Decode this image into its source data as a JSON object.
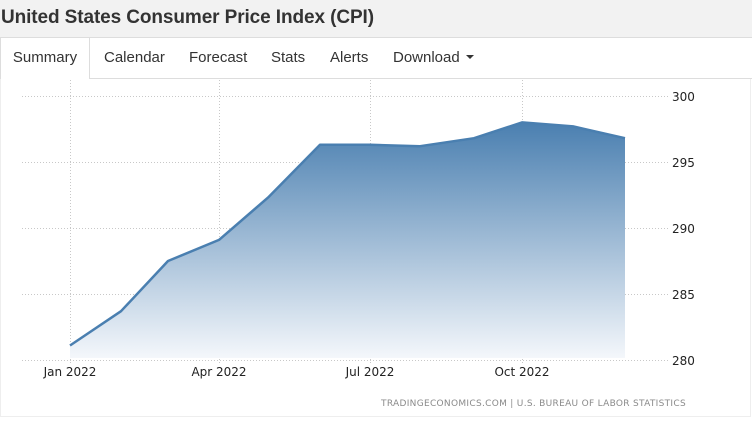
{
  "header": {
    "title": "United States Consumer Price Index (CPI)"
  },
  "tabs": [
    {
      "label": "Summary",
      "active": true
    },
    {
      "label": "Calendar",
      "active": false
    },
    {
      "label": "Forecast",
      "active": false
    },
    {
      "label": "Stats",
      "active": false
    },
    {
      "label": "Alerts",
      "active": false
    },
    {
      "label": "Download",
      "active": false,
      "dropdown": true
    }
  ],
  "colors": {
    "line": "#4a7fb0",
    "fill_top": "#4a7fb0",
    "fill_bottom": "#f4f7fb",
    "grid": "#c8c8c8"
  },
  "source": "TRADINGECONOMICS.COM  |  U.S. BUREAU OF LABOR STATISTICS",
  "chart_data": {
    "type": "area",
    "title": "United States Consumer Price Index (CPI)",
    "xlabel": "",
    "ylabel": "",
    "x": [
      "Jan 2022",
      "Feb 2022",
      "Mar 2022",
      "Apr 2022",
      "May 2022",
      "Jun 2022",
      "Jul 2022",
      "Aug 2022",
      "Sep 2022",
      "Oct 2022",
      "Nov 2022",
      "Dec 2022"
    ],
    "values": [
      281.1,
      283.7,
      287.5,
      289.1,
      292.3,
      296.3,
      296.3,
      296.2,
      296.8,
      298.0,
      297.7,
      296.8
    ],
    "x_tick_labels": [
      "Jan 2022",
      "Apr 2022",
      "Jul 2022",
      "Oct 2022"
    ],
    "y_tick_labels": [
      "280",
      "285",
      "290",
      "295",
      "300"
    ],
    "ylim": [
      280,
      300
    ],
    "y_axis_position": "right",
    "grid": true,
    "legend": "none",
    "source": "TRADINGECONOMICS.COM | U.S. BUREAU OF LABOR STATISTICS"
  }
}
